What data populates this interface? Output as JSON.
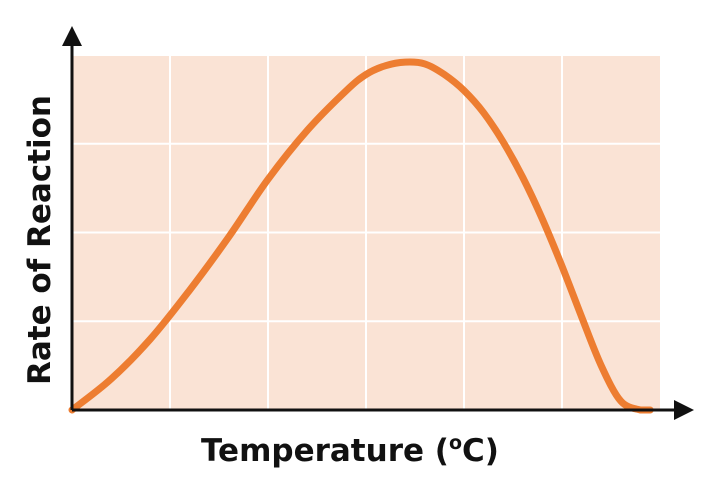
{
  "chart_data": {
    "type": "line",
    "xlabel": "Temperature (",
    "xlabel_sup": "o",
    "xlabel_end": "C)",
    "ylabel": "Rate of Reaction",
    "xlim": [
      0,
      6
    ],
    "ylim": [
      0,
      4
    ],
    "grid": true,
    "colors": {
      "plot_background": "#fae3d5",
      "grid": "#ffffff",
      "curve": "#ed7d31",
      "axis": "#111111"
    },
    "series": [
      {
        "x": [
          0,
          0.4,
          0.8,
          1.2,
          1.6,
          2.0,
          2.4,
          2.8,
          3.0,
          3.2,
          3.4,
          3.6,
          3.8,
          4.0,
          4.2,
          4.4,
          4.6,
          4.8,
          5.0,
          5.2,
          5.4,
          5.6,
          5.8,
          5.9
        ],
        "y": [
          0,
          0.35,
          0.8,
          1.35,
          1.95,
          2.6,
          3.15,
          3.6,
          3.78,
          3.88,
          3.92,
          3.9,
          3.78,
          3.6,
          3.35,
          3.02,
          2.62,
          2.15,
          1.62,
          1.05,
          0.5,
          0.1,
          0,
          0
        ]
      }
    ]
  }
}
